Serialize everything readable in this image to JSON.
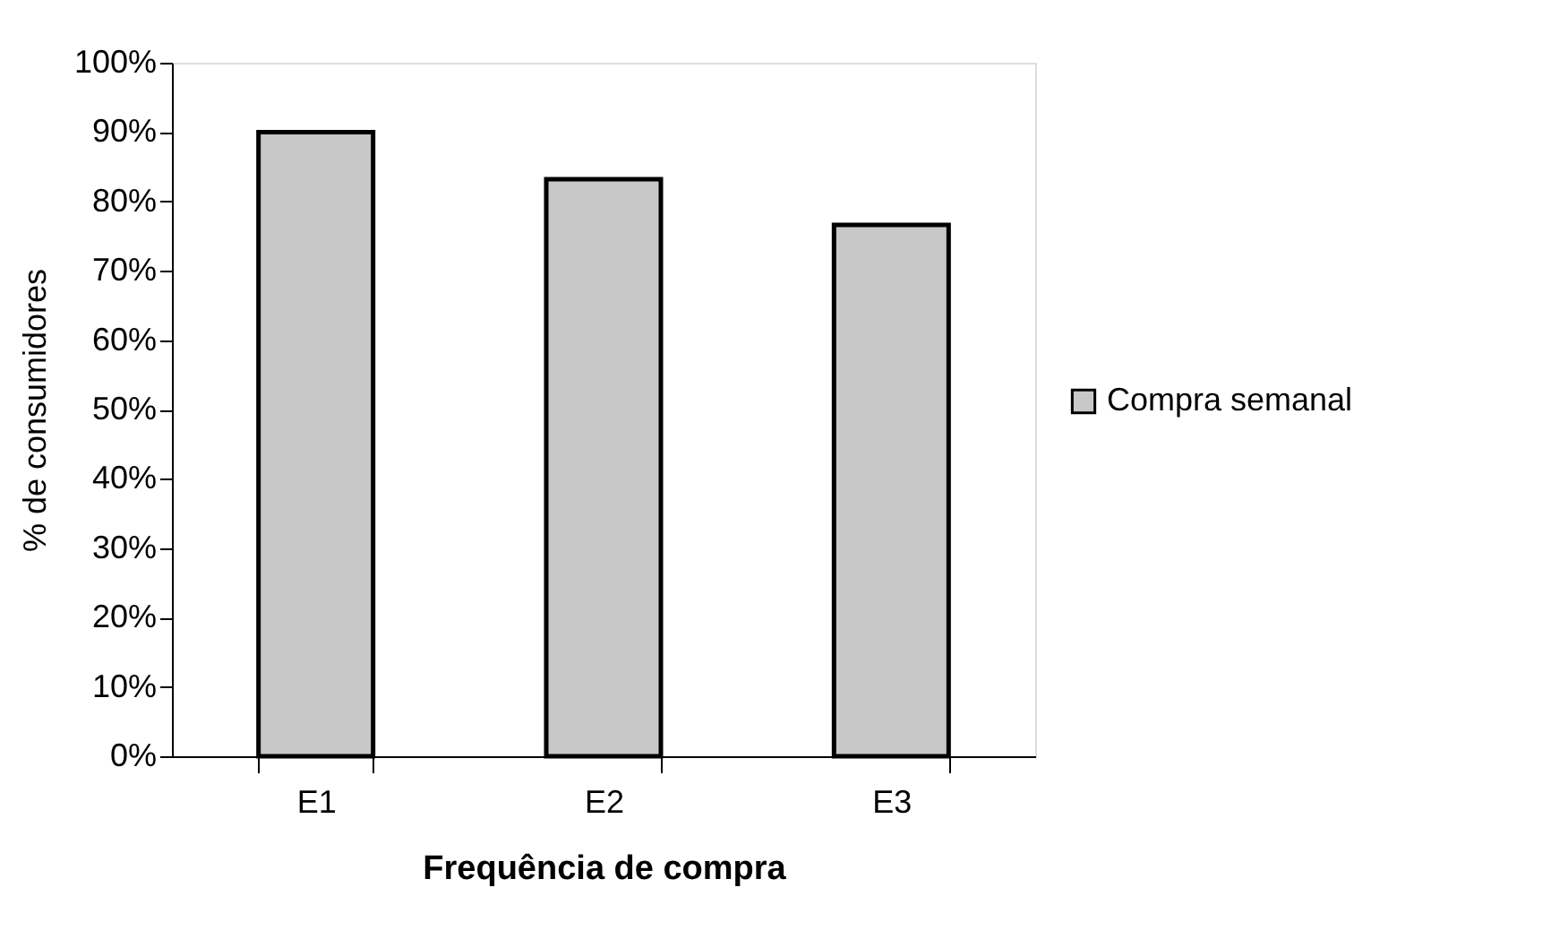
{
  "chart_data": {
    "type": "bar",
    "xlabel": "Frequência de compra",
    "ylabel": "% de consumidores",
    "categories": [
      "E1",
      "E2",
      "E3"
    ],
    "series": [
      {
        "name": "Compra semanal",
        "color": "#c8c8c8",
        "values": [
          90,
          83.2,
          76.6
        ]
      }
    ],
    "ylim": [
      0,
      100
    ],
    "yticks": [
      {
        "value": 0,
        "label": "0%"
      },
      {
        "value": 10,
        "label": "10%"
      },
      {
        "value": 20,
        "label": "20%"
      },
      {
        "value": 30,
        "label": "30%"
      },
      {
        "value": 40,
        "label": "40%"
      },
      {
        "value": 50,
        "label": "50%"
      },
      {
        "value": 60,
        "label": "60%"
      },
      {
        "value": 70,
        "label": "70%"
      },
      {
        "value": 80,
        "label": "80%"
      },
      {
        "value": 90,
        "label": "90%"
      },
      {
        "value": 100,
        "label": "100%"
      }
    ],
    "grid": false,
    "legend": "right"
  }
}
